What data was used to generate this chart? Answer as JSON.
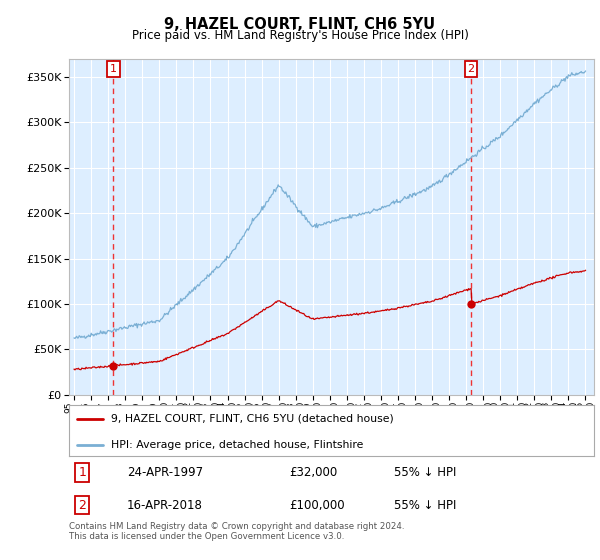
{
  "title": "9, HAZEL COURT, FLINT, CH6 5YU",
  "subtitle": "Price paid vs. HM Land Registry's House Price Index (HPI)",
  "xlim": [
    1994.7,
    2025.5
  ],
  "ylim": [
    0,
    370000
  ],
  "yticks": [
    0,
    50000,
    100000,
    150000,
    200000,
    250000,
    300000,
    350000
  ],
  "sale_dates": [
    1997.31,
    2018.29
  ],
  "sale_prices": [
    32000,
    100000
  ],
  "sale_color": "#cc0000",
  "hpi_color": "#7aafd4",
  "vline_color": "#ee3333",
  "plot_bg_color": "#ddeeff",
  "legend_label_sale": "9, HAZEL COURT, FLINT, CH6 5YU (detached house)",
  "legend_label_hpi": "HPI: Average price, detached house, Flintshire",
  "annotation1_date": "24-APR-1997",
  "annotation1_price": "£32,000",
  "annotation1_hpi": "55% ↓ HPI",
  "annotation2_date": "16-APR-2018",
  "annotation2_price": "£100,000",
  "annotation2_hpi": "55% ↓ HPI",
  "footer": "Contains HM Land Registry data © Crown copyright and database right 2024.\nThis data is licensed under the Open Government Licence v3.0."
}
